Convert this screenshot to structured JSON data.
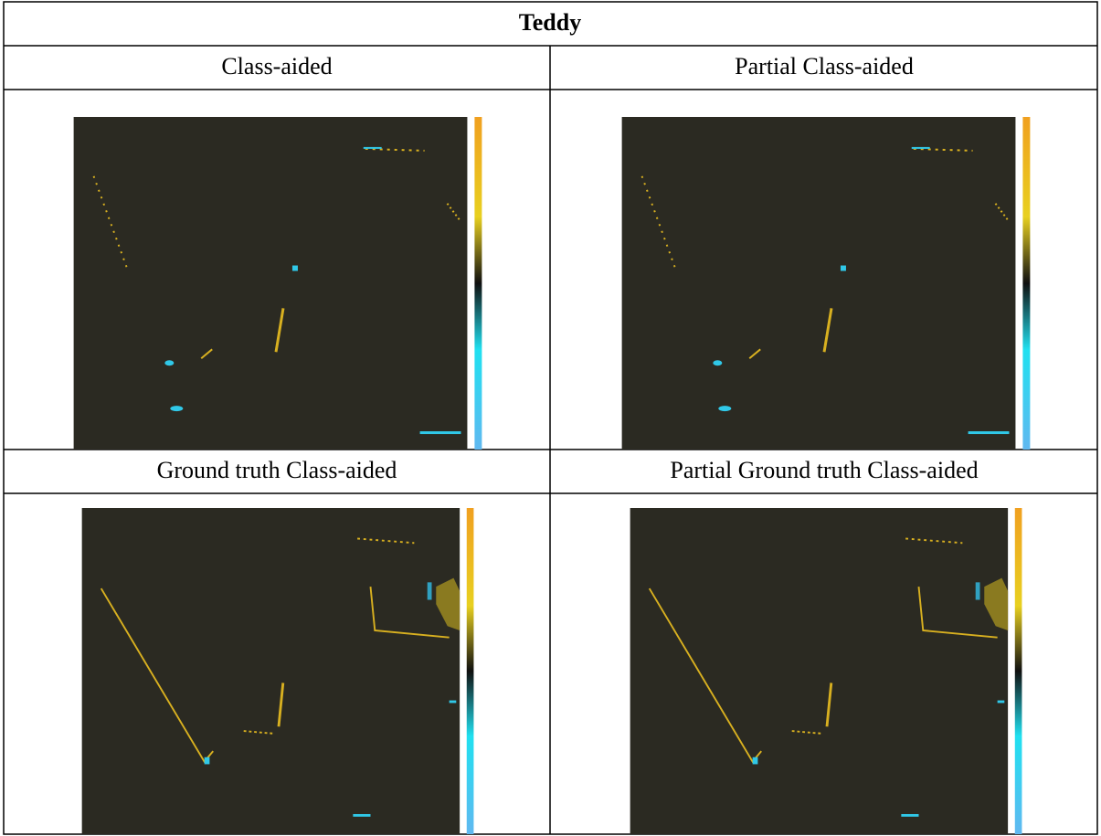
{
  "table": {
    "title": "Teddy",
    "rows": [
      [
        "Class-aided",
        "Partial Class-aided"
      ],
      [
        "Ground truth Class-aided",
        "Partial Ground truth Class-aided"
      ]
    ]
  }
}
